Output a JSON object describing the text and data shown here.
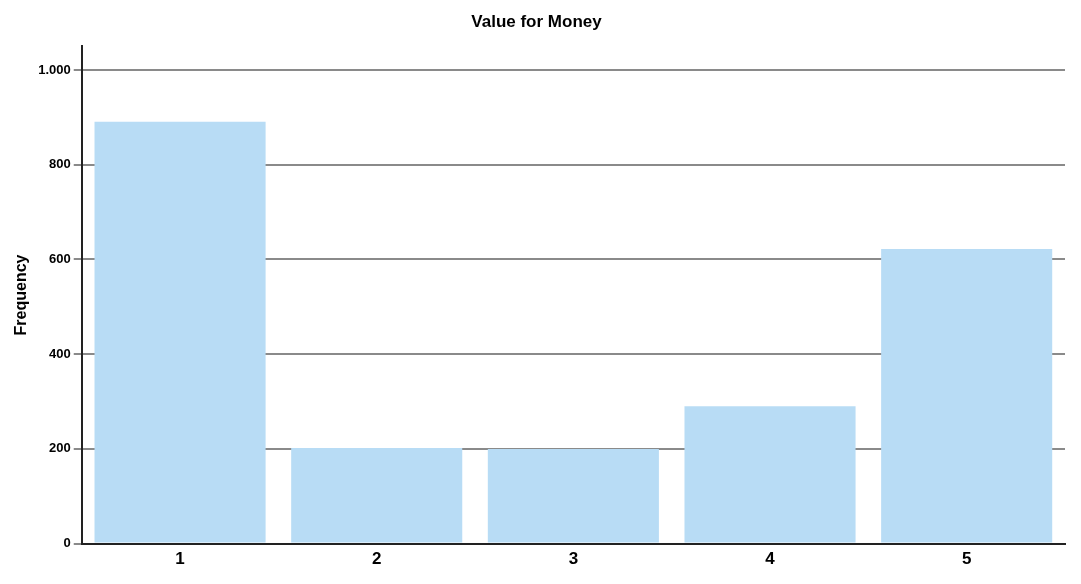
{
  "chart_data": {
    "type": "bar",
    "title": "Value for Money",
    "ylabel": "Frequency",
    "categories": [
      "1",
      "2",
      "3",
      "4",
      "5"
    ],
    "values": [
      891,
      202,
      200,
      290,
      622
    ],
    "color": "#b8dcf5",
    "ylim": [
      0,
      1050
    ],
    "yticks": [
      0,
      200,
      400,
      600,
      800,
      {
        "value": 1000,
        "label": "1.000"
      }
    ],
    "grid": "y"
  }
}
